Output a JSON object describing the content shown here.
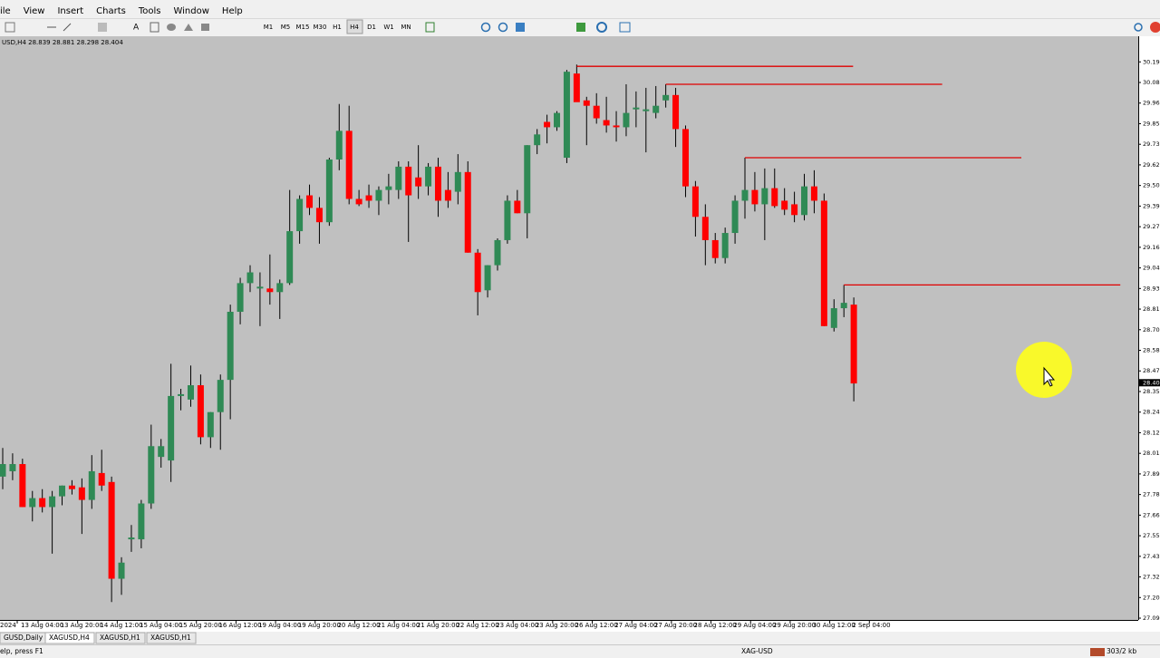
{
  "menu": [
    "ile",
    "View",
    "Insert",
    "Charts",
    "Tools",
    "Window",
    "Help"
  ],
  "toolbar": {
    "timeframes": [
      "M1",
      "M5",
      "M15",
      "M30",
      "H1",
      "H4",
      "D1",
      "W1",
      "MN"
    ],
    "active": "H4"
  },
  "chart": {
    "header": "USD,H4 28.839 28.881 28.298 28.404",
    "up_color": "#2f8a55",
    "down_color": "#ff0000",
    "level_color": "#e00000",
    "background": "#c0c0c0",
    "ylim": [
      27.08,
      30.338
    ],
    "yticks": [
      30.195,
      {
        "value": 30.08,
        "label": "30.080"
      },
      29.965,
      {
        "value": 29.85,
        "label": "29.850"
      },
      29.735,
      {
        "value": 29.62,
        "label": "29.620"
      },
      29.505,
      {
        "value": 29.39,
        "label": "29.390"
      },
      29.275,
      {
        "value": 29.16,
        "label": "29.160"
      },
      29.045,
      {
        "value": 28.93,
        "label": "28.930"
      },
      28.815,
      {
        "value": 28.7,
        "label": "28.700"
      },
      28.585,
      {
        "value": 28.47,
        "label": "28.470"
      },
      28.355,
      {
        "value": 28.24,
        "label": "28.240"
      },
      28.125,
      {
        "value": 28.01,
        "label": "28.010"
      },
      27.895,
      {
        "value": 27.78,
        "label": "27.780"
      },
      27.665,
      {
        "value": 27.55,
        "label": "27.550"
      },
      27.435,
      {
        "value": 27.32,
        "label": "27.320"
      },
      27.205,
      {
        "value": 27.09,
        "label": "27.090"
      }
    ],
    "last_price": 28.404,
    "time_labels": [
      "2024",
      "13 Aug 04:00",
      "13 Aug 20:00",
      "14 Aug 12:00",
      "15 Aug 04:00",
      "15 Aug 20:00",
      "16 Aug 12:00",
      "19 Aug 04:00",
      "19 Aug 20:00",
      "20 Aug 12:00",
      "21 Aug 04:00",
      "21 Aug 20:00",
      "22 Aug 12:00",
      "23 Aug 04:00",
      "23 Aug 20:00",
      "26 Aug 12:00",
      "27 Aug 04:00",
      "27 Aug 20:00",
      "28 Aug 12:00",
      "29 Aug 04:00",
      "29 Aug 20:00",
      "30 Aug 12:00",
      "2 Sep 04:00"
    ],
    "levels": [
      30.17,
      30.07,
      29.66,
      28.95
    ],
    "candles": [
      [
        27.88,
        28.04,
        27.81,
        27.95
      ],
      [
        27.91,
        28.01,
        27.86,
        27.95
      ],
      [
        27.95,
        27.98,
        27.71,
        27.71
      ],
      [
        27.71,
        27.8,
        27.63,
        27.76
      ],
      [
        27.76,
        27.81,
        27.68,
        27.71
      ],
      [
        27.71,
        27.8,
        27.45,
        27.77
      ],
      [
        27.77,
        27.83,
        27.72,
        27.83
      ],
      [
        27.83,
        27.86,
        27.78,
        27.81
      ],
      [
        27.82,
        27.87,
        27.56,
        27.75
      ],
      [
        27.75,
        28.0,
        27.7,
        27.91
      ],
      [
        27.9,
        28.03,
        27.8,
        27.83
      ],
      [
        27.85,
        27.88,
        27.18,
        27.31
      ],
      [
        27.31,
        27.43,
        27.22,
        27.4
      ],
      [
        27.53,
        27.61,
        27.46,
        27.54
      ],
      [
        27.53,
        27.75,
        27.48,
        27.73
      ],
      [
        27.73,
        28.17,
        27.7,
        28.05
      ],
      [
        27.99,
        28.09,
        27.93,
        28.05
      ],
      [
        27.97,
        28.51,
        27.85,
        28.33
      ],
      [
        28.33,
        28.37,
        28.25,
        28.34
      ],
      [
        28.31,
        28.5,
        28.27,
        28.39
      ],
      [
        28.39,
        28.45,
        28.06,
        28.1
      ],
      [
        28.1,
        28.24,
        28.04,
        28.24
      ],
      [
        28.24,
        28.45,
        28.03,
        28.42
      ],
      [
        28.42,
        28.84,
        28.2,
        28.8
      ],
      [
        28.8,
        28.99,
        28.73,
        28.96
      ],
      [
        28.96,
        29.06,
        28.91,
        29.02
      ],
      [
        28.93,
        29.02,
        28.72,
        28.94
      ],
      [
        28.93,
        29.12,
        28.84,
        28.91
      ],
      [
        28.91,
        28.98,
        28.76,
        28.96
      ],
      [
        28.96,
        29.48,
        28.95,
        29.25
      ],
      [
        29.25,
        29.45,
        29.18,
        29.43
      ],
      [
        29.45,
        29.51,
        29.34,
        29.38
      ],
      [
        29.38,
        29.44,
        29.18,
        29.3
      ],
      [
        29.3,
        29.66,
        29.28,
        29.65
      ],
      [
        29.65,
        29.96,
        29.59,
        29.81
      ],
      [
        29.81,
        29.95,
        29.4,
        29.43
      ],
      [
        29.43,
        29.48,
        29.39,
        29.4
      ],
      [
        29.45,
        29.51,
        29.38,
        29.42
      ],
      [
        29.42,
        29.5,
        29.34,
        29.48
      ],
      [
        29.48,
        29.57,
        29.4,
        29.5
      ],
      [
        29.48,
        29.64,
        29.43,
        29.61
      ],
      [
        29.61,
        29.64,
        29.19,
        29.45
      ],
      [
        29.55,
        29.73,
        29.43,
        29.5
      ],
      [
        29.5,
        29.63,
        29.45,
        29.61
      ],
      [
        29.61,
        29.66,
        29.33,
        29.42
      ],
      [
        29.48,
        29.58,
        29.38,
        29.42
      ],
      [
        29.47,
        29.68,
        29.4,
        29.58
      ],
      [
        29.58,
        29.64,
        29.13,
        29.13
      ],
      [
        29.13,
        29.15,
        28.78,
        28.91
      ],
      [
        28.92,
        29.06,
        28.88,
        29.06
      ],
      [
        29.06,
        29.21,
        29.03,
        29.2
      ],
      [
        29.2,
        29.45,
        29.18,
        29.42
      ],
      [
        29.42,
        29.48,
        29.35,
        29.35
      ],
      [
        29.35,
        29.73,
        29.21,
        29.73
      ],
      [
        29.73,
        29.82,
        29.68,
        29.79
      ],
      [
        29.86,
        29.9,
        29.74,
        29.83
      ],
      [
        29.83,
        29.92,
        29.81,
        29.91
      ],
      [
        29.66,
        30.15,
        29.63,
        30.14
      ],
      [
        30.13,
        30.18,
        29.98,
        29.97
      ],
      [
        29.98,
        30.0,
        29.73,
        29.95
      ],
      [
        29.95,
        30.02,
        29.85,
        29.88
      ],
      [
        29.87,
        30.0,
        29.8,
        29.84
      ],
      [
        29.84,
        29.92,
        29.75,
        29.83
      ],
      [
        29.83,
        30.07,
        29.78,
        29.91
      ],
      [
        29.93,
        30.03,
        29.83,
        29.94
      ],
      [
        29.92,
        30.05,
        29.69,
        29.93
      ],
      [
        29.91,
        30.06,
        29.88,
        29.95
      ],
      [
        29.98,
        30.07,
        29.94,
        30.01
      ],
      [
        30.01,
        30.05,
        29.72,
        29.82
      ],
      [
        29.82,
        29.84,
        29.44,
        29.5
      ],
      [
        29.5,
        29.53,
        29.22,
        29.33
      ],
      [
        29.33,
        29.4,
        29.06,
        29.2
      ],
      [
        29.2,
        29.24,
        29.07,
        29.1
      ],
      [
        29.1,
        29.27,
        29.07,
        29.24
      ],
      [
        29.24,
        29.45,
        29.18,
        29.42
      ],
      [
        29.42,
        29.66,
        29.32,
        29.48
      ],
      [
        29.48,
        29.58,
        29.36,
        29.4
      ],
      [
        29.4,
        29.6,
        29.2,
        29.49
      ],
      [
        29.49,
        29.6,
        29.38,
        29.39
      ],
      [
        29.42,
        29.49,
        29.34,
        29.37
      ],
      [
        29.4,
        29.47,
        29.3,
        29.34
      ],
      [
        29.34,
        29.57,
        29.31,
        29.5
      ],
      [
        29.5,
        29.59,
        29.35,
        29.42
      ],
      [
        29.42,
        29.46,
        28.72,
        28.72
      ],
      [
        28.71,
        28.87,
        28.69,
        28.82
      ],
      [
        28.82,
        28.95,
        28.77,
        28.85
      ],
      [
        28.84,
        28.88,
        28.3,
        28.4
      ]
    ]
  },
  "tabs": [
    "GUSD,Daily",
    "XAGUSD,H4",
    "XAGUSD,H1",
    "XAGUSD,H1"
  ],
  "status": {
    "help": "elp, press F1",
    "symbol": "XAG-USD",
    "traffic": "303/2 kb"
  }
}
